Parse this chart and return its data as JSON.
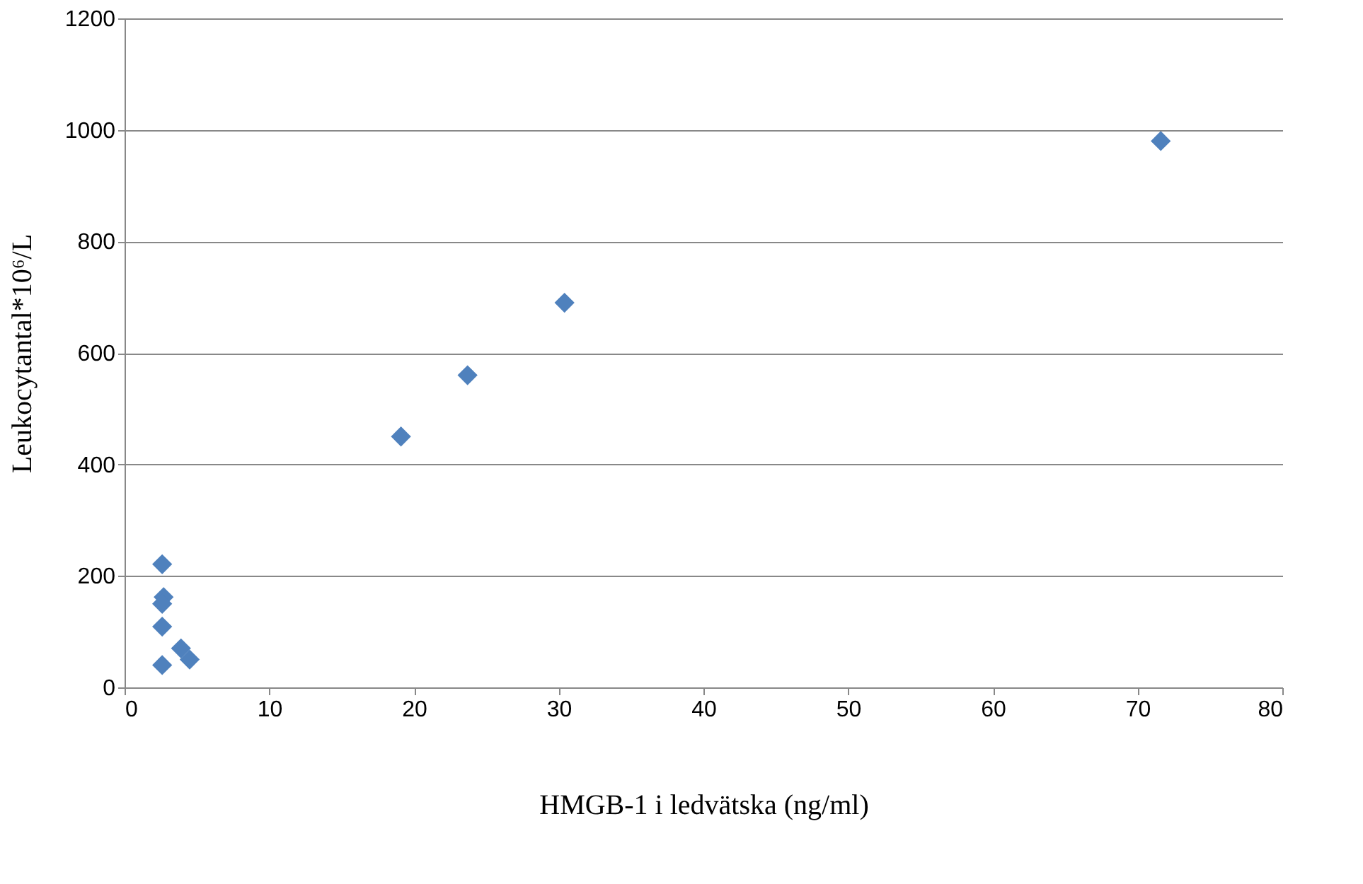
{
  "chart_data": {
    "type": "scatter",
    "xlabel": "HMGB-1 i ledvätska (ng/ml)",
    "ylabel": "Leukocytantal*10⁶/L",
    "x": [
      2.6,
      2.7,
      2.6,
      2.6,
      2.6,
      3.9,
      4.5,
      19.1,
      23.7,
      30.4,
      71.6
    ],
    "series": [
      {
        "color": "#4f81bd",
        "values": [
          221,
          162,
          150,
          109,
          40,
          70,
          50,
          450,
          560,
          690,
          980
        ]
      }
    ],
    "xlim": [
      0,
      80
    ],
    "xticks": [
      0,
      10,
      20,
      30,
      40,
      50,
      60,
      70,
      80
    ],
    "ylim": [
      0,
      1200
    ],
    "yticks": [
      0,
      200,
      400,
      600,
      800,
      1000,
      1200
    ],
    "grid": "y",
    "marker": "diamond"
  }
}
